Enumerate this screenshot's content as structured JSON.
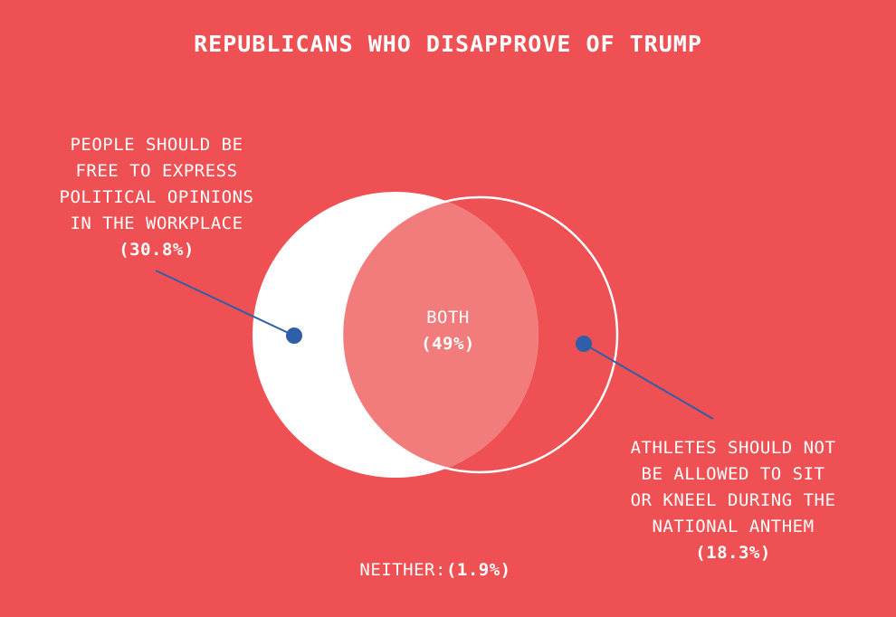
{
  "title": "REPUBLICANS WHO DISAPPROVE OF TRUMP",
  "colors": {
    "background": "#EF5053",
    "left_set": "#FFFFFF",
    "overlap": "#F27B7B",
    "right_set_outline": "#FFFFFF",
    "leader_line": "#2E5FA8"
  },
  "sets": {
    "left": {
      "lines": [
        "PEOPLE SHOULD BE",
        "FREE TO EXPRESS",
        "POLITICAL OPINIONS",
        "IN THE WORKPLACE"
      ],
      "value": "(30.8%)"
    },
    "right": {
      "lines": [
        "ATHLETES SHOULD NOT",
        "BE ALLOWED TO SIT",
        "OR KNEEL DURING THE",
        "NATIONAL ANTHEM"
      ],
      "value": "(18.3%)"
    },
    "both": {
      "label": "BOTH",
      "value": "(49%)"
    },
    "neither": {
      "label": "NEITHER:",
      "value": "(1.9%)"
    }
  }
}
